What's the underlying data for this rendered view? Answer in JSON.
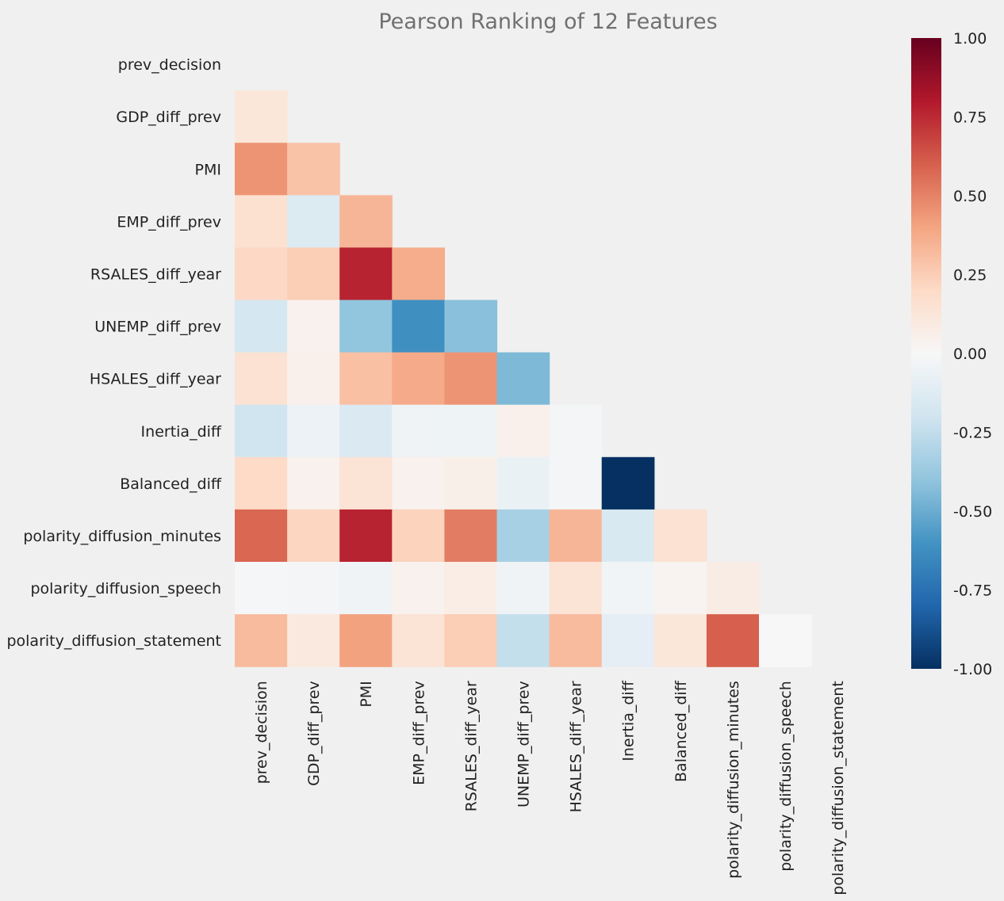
{
  "chart_data": {
    "type": "heatmap",
    "title": "Pearson Ranking of 12 Features",
    "features": [
      "prev_decision",
      "GDP_diff_prev",
      "PMI",
      "EMP_diff_prev",
      "RSALES_diff_year",
      "UNEMP_diff_prev",
      "HSALES_diff_year",
      "Inertia_diff",
      "Balanced_diff",
      "polarity_diffusion_minutes",
      "polarity_diffusion_speech",
      "polarity_diffusion_statement"
    ],
    "mask": "upper-triangle-including-diagonal",
    "matrix": [
      [
        null,
        null,
        null,
        null,
        null,
        null,
        null,
        null,
        null,
        null,
        null,
        null
      ],
      [
        0.12,
        null,
        null,
        null,
        null,
        null,
        null,
        null,
        null,
        null,
        null,
        null
      ],
      [
        0.45,
        0.29,
        null,
        null,
        null,
        null,
        null,
        null,
        null,
        null,
        null,
        null
      ],
      [
        0.16,
        -0.14,
        0.34,
        null,
        null,
        null,
        null,
        null,
        null,
        null,
        null,
        null
      ],
      [
        0.21,
        0.25,
        0.77,
        0.37,
        null,
        null,
        null,
        null,
        null,
        null,
        null,
        null
      ],
      [
        -0.18,
        0.04,
        -0.4,
        -0.62,
        -0.42,
        null,
        null,
        null,
        null,
        null,
        null,
        null
      ],
      [
        0.15,
        0.05,
        0.3,
        0.38,
        0.45,
        -0.45,
        null,
        null,
        null,
        null,
        null,
        null
      ],
      [
        -0.2,
        -0.06,
        -0.15,
        -0.04,
        -0.05,
        0.05,
        -0.02,
        null,
        null,
        null,
        null,
        null
      ],
      [
        0.2,
        0.04,
        0.14,
        0.04,
        0.06,
        -0.07,
        -0.02,
        -1.0,
        null,
        null,
        null,
        null
      ],
      [
        0.58,
        0.22,
        0.77,
        0.23,
        0.52,
        -0.33,
        0.34,
        -0.16,
        0.15,
        null,
        null,
        null
      ],
      [
        -0.01,
        -0.02,
        -0.04,
        0.04,
        0.07,
        -0.04,
        0.14,
        -0.03,
        0.03,
        0.08,
        null,
        null
      ],
      [
        0.32,
        0.1,
        0.41,
        0.14,
        0.25,
        -0.24,
        0.32,
        -0.1,
        0.12,
        0.6,
        0.0,
        null
      ]
    ],
    "colorscale": "RdBu_r",
    "vmin": -1.0,
    "vmax": 1.0,
    "colorbar_ticks": [
      "1.00",
      "0.75",
      "0.50",
      "0.25",
      "0.00",
      "-0.25",
      "-0.50",
      "-0.75",
      "-1.00"
    ],
    "colorbar_tick_values": [
      1.0,
      0.75,
      0.5,
      0.25,
      0.0,
      -0.25,
      -0.5,
      -0.75,
      -1.0
    ],
    "grid": false
  }
}
